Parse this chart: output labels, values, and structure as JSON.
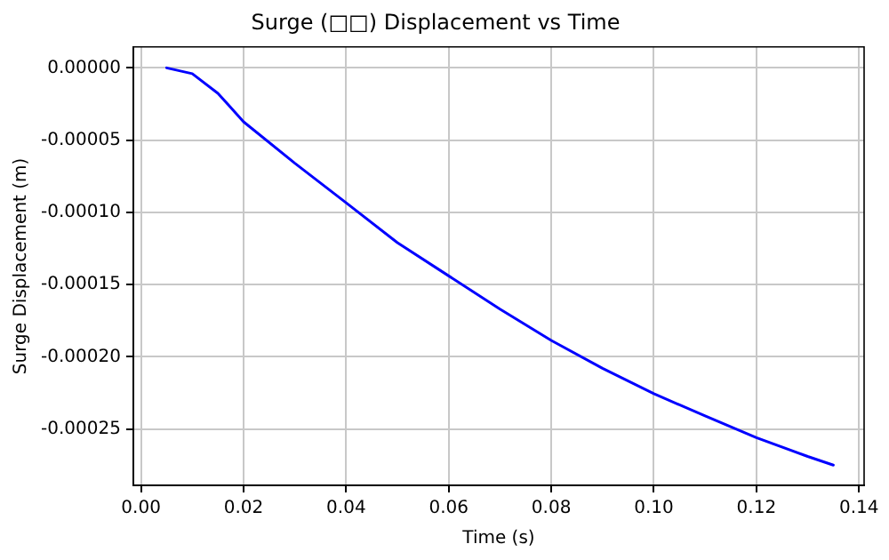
{
  "chart_data": {
    "type": "line",
    "title": "Surge (□□) Displacement vs Time",
    "xlabel": "Time (s)",
    "ylabel": "Surge Displacement (m)",
    "x": [
      0.005,
      0.01,
      0.015,
      0.02,
      0.03,
      0.04,
      0.05,
      0.06,
      0.07,
      0.08,
      0.09,
      0.1,
      0.11,
      0.12,
      0.13,
      0.135
    ],
    "series": [
      {
        "color": "#0000ff",
        "values": [
          0,
          -4e-06,
          -1.76e-05,
          -3.73e-05,
          -6.6e-05,
          -9.34e-05,
          -0.000121,
          -0.000144,
          -0.000167,
          -0.0001887,
          -0.000208,
          -0.0002255,
          -0.000241,
          -0.000256,
          -0.000269,
          -0.000275
        ]
      }
    ],
    "xlim": [
      -0.0015,
      0.141
    ],
    "ylim": [
      -0.000289,
      1.45e-05
    ],
    "xticks": [
      {
        "value": 0,
        "label": "0.00"
      },
      {
        "value": 0.02,
        "label": "0.02"
      },
      {
        "value": 0.04,
        "label": "0.04"
      },
      {
        "value": 0.06,
        "label": "0.06"
      },
      {
        "value": 0.08,
        "label": "0.08"
      },
      {
        "value": 0.1,
        "label": "0.10"
      },
      {
        "value": 0.12,
        "label": "0.12"
      },
      {
        "value": 0.14,
        "label": "0.14"
      }
    ],
    "yticks": [
      {
        "value": 0,
        "label": "0.00000"
      },
      {
        "value": -5e-05,
        "label": "-0.00005"
      },
      {
        "value": -0.0001,
        "label": "-0.00010"
      },
      {
        "value": -0.00015,
        "label": "-0.00015"
      },
      {
        "value": -0.0002,
        "label": "-0.00020"
      },
      {
        "value": -0.00025,
        "label": "-0.00025"
      }
    ],
    "grid": true,
    "legend": false,
    "marker": "none",
    "line_style": "solid"
  }
}
